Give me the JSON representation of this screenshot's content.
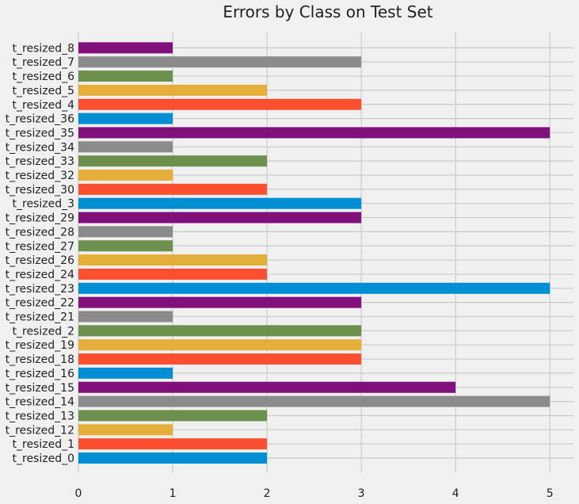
{
  "chart_data": {
    "type": "bar",
    "orientation": "horizontal",
    "title": "Errors by Class on Test Set",
    "xlabel": "",
    "ylabel": "",
    "xlim": [
      0,
      5.25
    ],
    "x_ticks": [
      0,
      1,
      2,
      3,
      4,
      5
    ],
    "grid": true,
    "categories": [
      "t_resized_0",
      "t_resized_1",
      "t_resized_12",
      "t_resized_13",
      "t_resized_14",
      "t_resized_15",
      "t_resized_16",
      "t_resized_18",
      "t_resized_19",
      "t_resized_2",
      "t_resized_21",
      "t_resized_22",
      "t_resized_23",
      "t_resized_24",
      "t_resized_26",
      "t_resized_27",
      "t_resized_28",
      "t_resized_29",
      "t_resized_3",
      "t_resized_30",
      "t_resized_32",
      "t_resized_33",
      "t_resized_34",
      "t_resized_35",
      "t_resized_36",
      "t_resized_4",
      "t_resized_5",
      "t_resized_6",
      "t_resized_7",
      "t_resized_8"
    ],
    "values": [
      2,
      2,
      1,
      2,
      5,
      4,
      1,
      3,
      3,
      3,
      1,
      3,
      5,
      2,
      2,
      1,
      1,
      3,
      3,
      2,
      1,
      2,
      1,
      5,
      1,
      3,
      2,
      1,
      3,
      1
    ],
    "color_cycle": [
      "#008fd5",
      "#fc4f30",
      "#e5ae38",
      "#6d904f",
      "#8b8b8b",
      "#810f7c"
    ],
    "colors": {
      "background": "#f0f0f0",
      "grid": "#cbcbcb",
      "text": "#222222"
    }
  }
}
